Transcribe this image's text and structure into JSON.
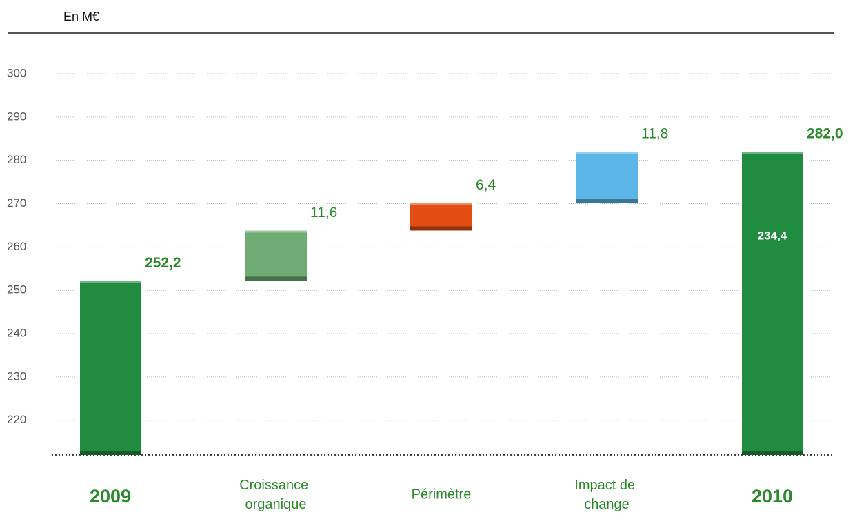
{
  "chart_data": {
    "type": "waterfall",
    "unit_label": "En M€",
    "categories": [
      "2009",
      "Croissance organique",
      "Périmètre",
      "Impact de change",
      "2010"
    ],
    "values": [
      252.2,
      11.6,
      6.4,
      11.8,
      282.0
    ],
    "value_labels": [
      "252,2",
      "11,6",
      "6,4",
      "11,8",
      "282,0"
    ],
    "is_total": [
      true,
      false,
      false,
      false,
      true
    ],
    "colors": [
      "#1f8c3f",
      "#6eac74",
      "#e14d12",
      "#5db6e8",
      "#1f8c3f"
    ],
    "annotation": "234,4",
    "ylim": [
      212,
      300
    ],
    "yticks": [
      220,
      230,
      240,
      250,
      260,
      270,
      280,
      290,
      300
    ],
    "grid": true
  }
}
